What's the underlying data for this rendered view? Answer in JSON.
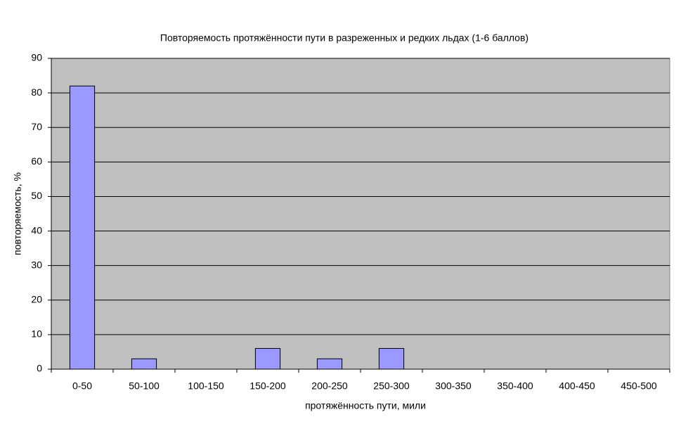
{
  "chart_data": {
    "type": "bar",
    "title": "Повторяемость протяжённости пути в разреженных и редких льдах (1-6 баллов)",
    "x_label": "протяжённость пути, мили",
    "y_label": "повторяемость, %",
    "categories": [
      "0-50",
      "50-100",
      "100-150",
      "150-200",
      "200-250",
      "250-300",
      "300-350",
      "350-400",
      "400-450",
      "450-500"
    ],
    "values": [
      82,
      3,
      0,
      6,
      3,
      6,
      0,
      0,
      0,
      0
    ],
    "color": "#9999ff",
    "ylim": [
      0,
      90
    ],
    "yticks": [
      0,
      10,
      20,
      30,
      40,
      50,
      60,
      70,
      80,
      90
    ],
    "grid": true
  }
}
